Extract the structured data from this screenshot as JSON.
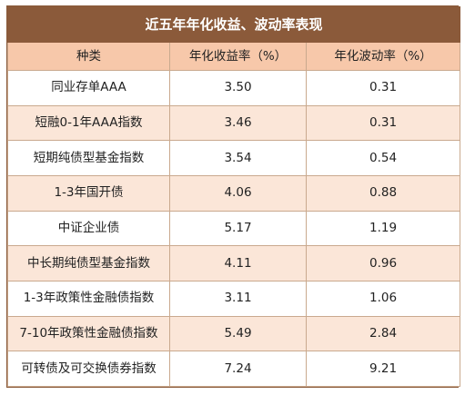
{
  "chart_data": {
    "type": "table",
    "title": "近五年年化收益、波动率表现",
    "columns": [
      "种类",
      "年化收益率（%）",
      "年化波动率（%）"
    ],
    "rows": [
      {
        "name": "同业存单AAA",
        "return": "3.50",
        "volatility": "0.31"
      },
      {
        "name": "短融0-1年AAA指数",
        "return": "3.46",
        "volatility": "0.31"
      },
      {
        "name": "短期纯债型基金指数",
        "return": "3.54",
        "volatility": "0.54"
      },
      {
        "name": "1-3年国开债",
        "return": "4.06",
        "volatility": "0.88"
      },
      {
        "name": "中证企业债",
        "return": "5.17",
        "volatility": "1.19"
      },
      {
        "name": "中长期纯债型基金指数",
        "return": "4.11",
        "volatility": "0.96"
      },
      {
        "name": "1-3年政策性金融债指数",
        "return": "3.11",
        "volatility": "1.06"
      },
      {
        "name": "7-10年政策性金融债指数",
        "return": "5.49",
        "volatility": "2.84"
      },
      {
        "name": "可转债及可交换债券指数",
        "return": "7.24",
        "volatility": "9.21"
      }
    ]
  },
  "colors": {
    "title_bg": "#8b5a3a",
    "header_bg": "#f7c8aa",
    "shaded_row_bg": "#fbe6d8"
  }
}
